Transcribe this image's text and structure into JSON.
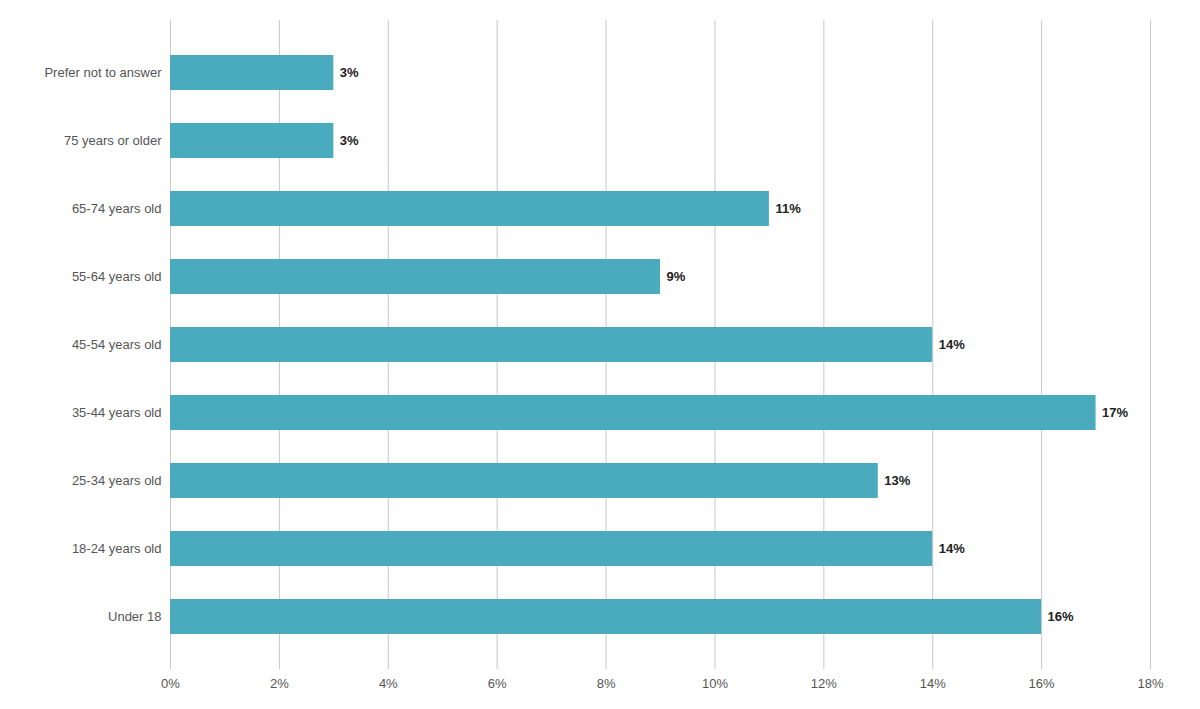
{
  "chart_data": {
    "type": "bar",
    "orientation": "horizontal",
    "categories": [
      "Under 18",
      "18-24 years old",
      "25-34 years old",
      "35-44 years old",
      "45-54 years old",
      "55-64 years old",
      "65-74 years old",
      "75 years or older",
      "Prefer not to answer"
    ],
    "values": [
      16,
      14,
      13,
      17,
      14,
      9,
      11,
      3,
      3
    ],
    "value_labels": [
      "16%",
      "14%",
      "13%",
      "17%",
      "14%",
      "9%",
      "11%",
      "3%",
      "3%"
    ],
    "data_labels": true,
    "color": "#4AABBF",
    "xlim": [
      0,
      18
    ],
    "xticks": [
      {
        "value": 0,
        "label": "0%"
      },
      {
        "value": 2,
        "label": "2%"
      },
      {
        "value": 4,
        "label": "4%"
      },
      {
        "value": 6,
        "label": "6%"
      },
      {
        "value": 8,
        "label": "8%"
      },
      {
        "value": 10,
        "label": "10%"
      },
      {
        "value": 12,
        "label": "12%"
      },
      {
        "value": 14,
        "label": "14%"
      },
      {
        "value": 16,
        "label": "16%"
      },
      {
        "value": 18,
        "label": "18%"
      }
    ],
    "grid": true
  }
}
